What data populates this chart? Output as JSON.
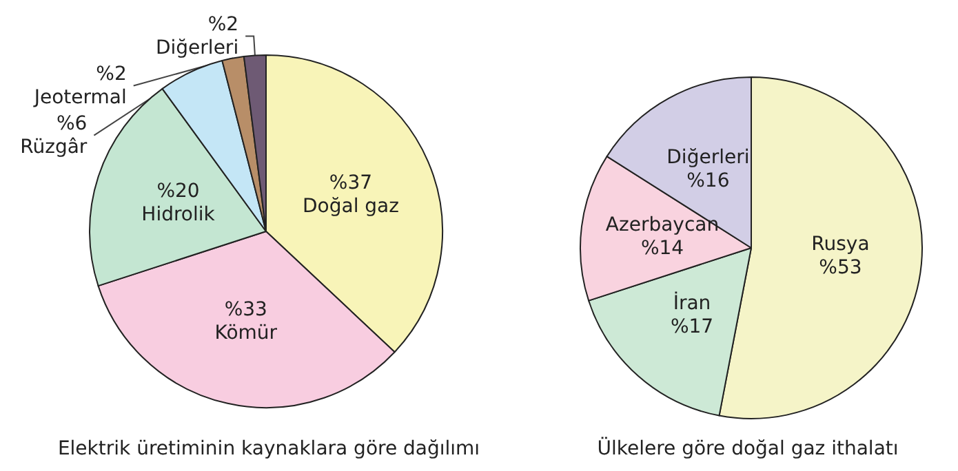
{
  "chart_data": [
    {
      "type": "pie",
      "title": "Elektrik üretiminin kaynaklara göre dağılımı",
      "categories": [
        "Doğal gaz",
        "Kömür",
        "Hidrolik",
        "Rüzgâr",
        "Jeotermal",
        "Diğerleri"
      ],
      "values": [
        37,
        33,
        20,
        6,
        2,
        2
      ],
      "value_labels": [
        "%37",
        "%33",
        "%20",
        "%6",
        "%2",
        "%2"
      ],
      "colors": [
        "#f8f4b8",
        "#f8cde0",
        "#c4e6d2",
        "#c4e6f6",
        "#b88e68",
        "#6e5a74"
      ],
      "legend": false
    },
    {
      "type": "pie",
      "title": "Ülkelere göre doğal gaz ithalatı",
      "categories": [
        "Rusya",
        "İran",
        "Azerbaycan",
        "Diğerleri"
      ],
      "values": [
        53,
        17,
        14,
        16
      ],
      "value_labels": [
        "%53",
        "%17",
        "%14",
        "%16"
      ],
      "colors": [
        "#f5f4c8",
        "#cde9d6",
        "#f9d3df",
        "#d2cee6"
      ],
      "legend": false
    }
  ]
}
